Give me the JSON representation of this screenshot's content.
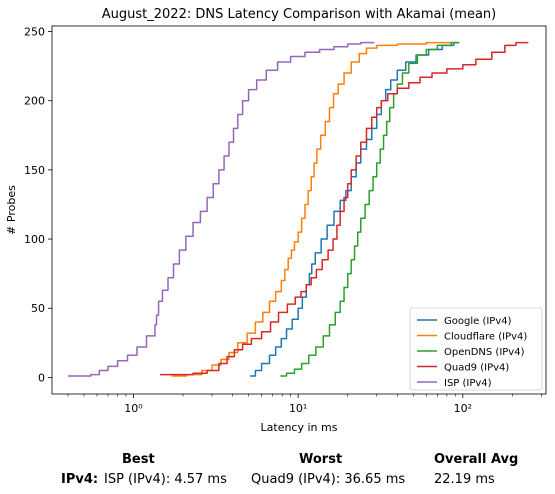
{
  "chart_data": {
    "type": "line",
    "title": "August_2022: DNS Latency Comparison with Akamai (mean)",
    "xlabel": "Latency in ms",
    "ylabel": "# Probes",
    "xscale": "log",
    "xlim": [
      0.32,
      320
    ],
    "ylim": [
      -12,
      254
    ],
    "xticks": [
      {
        "value": 1,
        "label": "10⁰"
      },
      {
        "value": 10,
        "label": "10¹"
      },
      {
        "value": 100,
        "label": "10²"
      }
    ],
    "yticks": [
      0,
      50,
      100,
      150,
      200,
      250
    ],
    "grid": false,
    "legend_position": "lower-right",
    "series": [
      {
        "name": "Google (IPv4)",
        "color": "#1f77b4",
        "points": [
          [
            5.1,
            1
          ],
          [
            5.5,
            5
          ],
          [
            6.0,
            10
          ],
          [
            6.7,
            16
          ],
          [
            7.3,
            22
          ],
          [
            7.9,
            28
          ],
          [
            8.5,
            35
          ],
          [
            9.2,
            42
          ],
          [
            10.0,
            50
          ],
          [
            10.6,
            58
          ],
          [
            11.2,
            67
          ],
          [
            11.7,
            75
          ],
          [
            12.1,
            82
          ],
          [
            12.7,
            90
          ],
          [
            13.8,
            100
          ],
          [
            15.0,
            110
          ],
          [
            16.5,
            120
          ],
          [
            18.0,
            128
          ],
          [
            19.5,
            135
          ],
          [
            21.0,
            145
          ],
          [
            22.5,
            155
          ],
          [
            24.0,
            165
          ],
          [
            26.0,
            172
          ],
          [
            28.0,
            180
          ],
          [
            30.0,
            190
          ],
          [
            32.0,
            200
          ],
          [
            34.0,
            208
          ],
          [
            36.5,
            215
          ],
          [
            40.0,
            222
          ],
          [
            45.0,
            228
          ],
          [
            52.0,
            233
          ],
          [
            62.0,
            237
          ],
          [
            75.0,
            240
          ],
          [
            88.0,
            242
          ],
          [
            95.0,
            242
          ]
        ]
      },
      {
        "name": "Cloudflare (IPv4)",
        "color": "#ff7f0e",
        "points": [
          [
            1.7,
            1
          ],
          [
            2.1,
            2
          ],
          [
            2.6,
            5
          ],
          [
            3.0,
            9
          ],
          [
            3.4,
            13
          ],
          [
            3.8,
            18
          ],
          [
            4.3,
            25
          ],
          [
            4.9,
            32
          ],
          [
            5.5,
            40
          ],
          [
            6.1,
            47
          ],
          [
            6.7,
            55
          ],
          [
            7.3,
            62
          ],
          [
            7.9,
            70
          ],
          [
            8.3,
            78
          ],
          [
            8.7,
            86
          ],
          [
            9.1,
            92
          ],
          [
            9.5,
            98
          ],
          [
            10.0,
            105
          ],
          [
            10.5,
            115
          ],
          [
            11.0,
            125
          ],
          [
            11.5,
            135
          ],
          [
            12.0,
            145
          ],
          [
            12.5,
            155
          ],
          [
            13.0,
            165
          ],
          [
            13.7,
            175
          ],
          [
            14.6,
            185
          ],
          [
            15.5,
            195
          ],
          [
            16.4,
            205
          ],
          [
            17.5,
            212
          ],
          [
            19.0,
            220
          ],
          [
            21.0,
            228
          ],
          [
            23.5,
            234
          ],
          [
            26.0,
            238
          ],
          [
            30.0,
            240
          ],
          [
            40.0,
            241
          ],
          [
            60.0,
            242
          ],
          [
            85.0,
            242
          ]
        ]
      },
      {
        "name": "OpenDNS (IPv4)",
        "color": "#2ca02c",
        "points": [
          [
            7.8,
            1
          ],
          [
            8.5,
            3
          ],
          [
            9.5,
            6
          ],
          [
            10.5,
            10
          ],
          [
            11.6,
            16
          ],
          [
            12.8,
            22
          ],
          [
            14.2,
            30
          ],
          [
            15.5,
            38
          ],
          [
            16.8,
            47
          ],
          [
            18.0,
            55
          ],
          [
            19.0,
            65
          ],
          [
            20.0,
            75
          ],
          [
            21.0,
            85
          ],
          [
            22.0,
            95
          ],
          [
            23.0,
            105
          ],
          [
            24.0,
            115
          ],
          [
            25.5,
            125
          ],
          [
            27.0,
            135
          ],
          [
            28.5,
            145
          ],
          [
            30.0,
            155
          ],
          [
            31.5,
            165
          ],
          [
            33.0,
            175
          ],
          [
            34.5,
            185
          ],
          [
            36.0,
            195
          ],
          [
            38.0,
            205
          ],
          [
            40.0,
            212
          ],
          [
            43.0,
            220
          ],
          [
            47.0,
            227
          ],
          [
            53.0,
            233
          ],
          [
            60.0,
            237
          ],
          [
            70.0,
            240
          ],
          [
            85.0,
            242
          ],
          [
            95.0,
            242
          ]
        ]
      },
      {
        "name": "Quad9 (IPv4)",
        "color": "#d62728",
        "points": [
          [
            1.45,
            2
          ],
          [
            2.3,
            3
          ],
          [
            2.8,
            5
          ],
          [
            3.3,
            10
          ],
          [
            3.7,
            15
          ],
          [
            4.1,
            20
          ],
          [
            4.6,
            24
          ],
          [
            5.2,
            28
          ],
          [
            6.0,
            33
          ],
          [
            6.8,
            40
          ],
          [
            7.6,
            47
          ],
          [
            8.6,
            53
          ],
          [
            9.6,
            58
          ],
          [
            10.4,
            62
          ],
          [
            11.2,
            67
          ],
          [
            12.0,
            72
          ],
          [
            12.9,
            78
          ],
          [
            14.0,
            85
          ],
          [
            15.2,
            92
          ],
          [
            16.3,
            100
          ],
          [
            17.2,
            110
          ],
          [
            18.0,
            120
          ],
          [
            19.0,
            130
          ],
          [
            20.0,
            140
          ],
          [
            21.0,
            150
          ],
          [
            22.5,
            160
          ],
          [
            24.0,
            170
          ],
          [
            26.0,
            180
          ],
          [
            28.0,
            188
          ],
          [
            30.0,
            195
          ],
          [
            32.0,
            200
          ],
          [
            35.0,
            205
          ],
          [
            40.0,
            209
          ],
          [
            47.0,
            213
          ],
          [
            55.0,
            217
          ],
          [
            65.0,
            220
          ],
          [
            80.0,
            223
          ],
          [
            100.0,
            226
          ],
          [
            120.0,
            230
          ],
          [
            150.0,
            235
          ],
          [
            180.0,
            240
          ],
          [
            210.0,
            242
          ],
          [
            250.0,
            242
          ]
        ]
      },
      {
        "name": "ISP (IPv4)",
        "color": "#9467bd",
        "points": [
          [
            0.4,
            1
          ],
          [
            0.55,
            2
          ],
          [
            0.62,
            5
          ],
          [
            0.7,
            8
          ],
          [
            0.8,
            12
          ],
          [
            0.92,
            16
          ],
          [
            1.05,
            22
          ],
          [
            1.2,
            30
          ],
          [
            1.35,
            38
          ],
          [
            1.38,
            45
          ],
          [
            1.42,
            55
          ],
          [
            1.5,
            63
          ],
          [
            1.62,
            72
          ],
          [
            1.75,
            82
          ],
          [
            1.9,
            92
          ],
          [
            2.08,
            102
          ],
          [
            2.3,
            112
          ],
          [
            2.55,
            120
          ],
          [
            2.8,
            130
          ],
          [
            3.05,
            140
          ],
          [
            3.3,
            150
          ],
          [
            3.55,
            160
          ],
          [
            3.8,
            170
          ],
          [
            4.05,
            180
          ],
          [
            4.3,
            190
          ],
          [
            4.6,
            200
          ],
          [
            5.0,
            208
          ],
          [
            5.6,
            215
          ],
          [
            6.4,
            222
          ],
          [
            7.5,
            228
          ],
          [
            9.0,
            232
          ],
          [
            11.0,
            235
          ],
          [
            13.5,
            237
          ],
          [
            16.5,
            239
          ],
          [
            20.0,
            241
          ],
          [
            24.0,
            242
          ],
          [
            29.0,
            242
          ]
        ]
      }
    ]
  },
  "summary": {
    "best_header": "Best",
    "worst_header": "Worst",
    "avg_header": "Overall Avg",
    "row_label": "IPv4:",
    "best_value": "ISP (IPv4): 4.57 ms",
    "worst_value": "Quad9 (IPv4): 36.65 ms",
    "avg_value": "22.19 ms"
  }
}
